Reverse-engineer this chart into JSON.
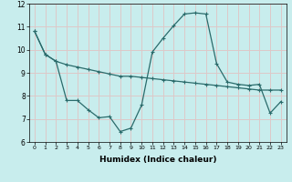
{
  "xlabel": "Humidex (Indice chaleur)",
  "ylabel": "",
  "background_color": "#c8eded",
  "grid_color": "#ddc8c8",
  "line_color": "#2a6b6b",
  "xlim": [
    -0.5,
    23.5
  ],
  "ylim": [
    6,
    12
  ],
  "yticks": [
    6,
    7,
    8,
    9,
    10,
    11,
    12
  ],
  "xticks": [
    0,
    1,
    2,
    3,
    4,
    5,
    6,
    7,
    8,
    9,
    10,
    11,
    12,
    13,
    14,
    15,
    16,
    17,
    18,
    19,
    20,
    21,
    22,
    23
  ],
  "curve1_x": [
    0,
    1,
    2,
    3,
    4,
    5,
    6,
    7,
    8,
    9,
    10,
    11,
    12,
    13,
    14,
    15,
    16,
    17,
    18,
    19,
    20,
    21,
    22,
    23
  ],
  "curve1_y": [
    10.8,
    9.8,
    9.5,
    9.35,
    9.25,
    9.15,
    9.05,
    8.95,
    8.85,
    8.85,
    8.8,
    8.75,
    8.7,
    8.65,
    8.6,
    8.55,
    8.5,
    8.45,
    8.4,
    8.35,
    8.3,
    8.25,
    8.25,
    8.25
  ],
  "curve2_x": [
    0,
    1,
    2,
    3,
    4,
    5,
    6,
    7,
    8,
    9,
    10,
    11,
    12,
    13,
    14,
    15,
    16,
    17,
    18,
    19,
    20,
    21,
    22,
    23
  ],
  "curve2_y": [
    10.8,
    9.8,
    9.5,
    7.8,
    7.8,
    7.4,
    7.05,
    7.1,
    6.45,
    6.6,
    7.6,
    9.9,
    10.5,
    11.05,
    11.55,
    11.6,
    11.55,
    9.4,
    8.6,
    8.5,
    8.45,
    8.5,
    7.25,
    7.75
  ]
}
